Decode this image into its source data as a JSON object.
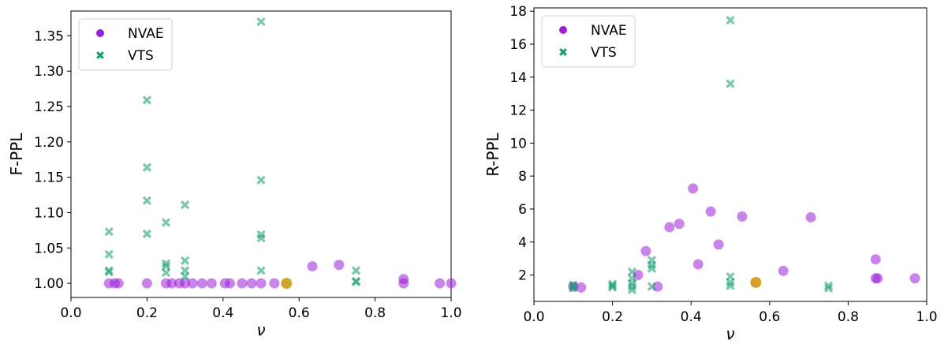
{
  "chart_data": [
    {
      "type": "scatter",
      "xlabel": "ν",
      "ylabel": "F-PPL",
      "xlim": [
        0.0,
        1.0
      ],
      "ylim": [
        0.98,
        1.385
      ],
      "xticks": [
        "0.0",
        "0.2",
        "0.4",
        "0.6",
        "0.8",
        "1.0"
      ],
      "yticks": [
        "1.00",
        "1.05",
        "1.10",
        "1.15",
        "1.20",
        "1.25",
        "1.30",
        "1.35"
      ],
      "legend": {
        "position": "top-left"
      },
      "highlight": {
        "color": "#d4a32a",
        "x": 0.567,
        "y": 1.0
      },
      "series": [
        {
          "name": "NVAE",
          "marker": "circle",
          "color": "#9b1fd6",
          "points": [
            [
              0.1,
              1.0
            ],
            [
              0.115,
              1.0
            ],
            [
              0.125,
              1.0
            ],
            [
              0.2,
              1.0
            ],
            [
              0.25,
              1.0
            ],
            [
              0.265,
              1.0
            ],
            [
              0.285,
              1.0
            ],
            [
              0.3,
              1.0
            ],
            [
              0.32,
              1.0
            ],
            [
              0.345,
              1.0
            ],
            [
              0.37,
              1.0
            ],
            [
              0.405,
              1.0
            ],
            [
              0.418,
              1.0
            ],
            [
              0.45,
              1.0
            ],
            [
              0.475,
              1.0
            ],
            [
              0.5,
              1.0
            ],
            [
              0.535,
              1.0
            ],
            [
              0.635,
              1.024
            ],
            [
              0.705,
              1.026
            ],
            [
              0.875,
              1.0
            ],
            [
              0.875,
              1.006
            ],
            [
              0.97,
              1.0
            ],
            [
              1.0,
              1.0
            ]
          ]
        },
        {
          "name": "VTS",
          "marker": "x",
          "color": "#0f9a6e",
          "points": [
            [
              0.1,
              1.073
            ],
            [
              0.1,
              1.041
            ],
            [
              0.1,
              1.018
            ],
            [
              0.1,
              1.016
            ],
            [
              0.2,
              1.259
            ],
            [
              0.2,
              1.164
            ],
            [
              0.2,
              1.117
            ],
            [
              0.2,
              1.07
            ],
            [
              0.25,
              1.086
            ],
            [
              0.25,
              1.028
            ],
            [
              0.25,
              1.024
            ],
            [
              0.25,
              1.015
            ],
            [
              0.3,
              1.111
            ],
            [
              0.3,
              1.032
            ],
            [
              0.3,
              1.018
            ],
            [
              0.3,
              1.01
            ],
            [
              0.5,
              1.37
            ],
            [
              0.5,
              1.146
            ],
            [
              0.5,
              1.069
            ],
            [
              0.5,
              1.064
            ],
            [
              0.5,
              1.018
            ],
            [
              0.75,
              1.018
            ],
            [
              0.75,
              1.003
            ],
            [
              0.75,
              1.002
            ]
          ]
        }
      ]
    },
    {
      "type": "scatter",
      "xlabel": "ν",
      "ylabel": "R-PPL",
      "xlim": [
        0.0,
        1.0
      ],
      "ylim": [
        0.4,
        18.2
      ],
      "xticks": [
        "0.0",
        "0.2",
        "0.4",
        "0.6",
        "0.8",
        "1.0"
      ],
      "yticks": [
        "2",
        "4",
        "6",
        "8",
        "10",
        "12",
        "14",
        "16",
        "18"
      ],
      "legend": {
        "position": "top-left"
      },
      "highlight": {
        "color": "#d4a32a",
        "x": 0.565,
        "y": 1.55
      },
      "series": [
        {
          "name": "NVAE",
          "marker": "circle",
          "color": "#9b1fd6",
          "points": [
            [
              0.1,
              1.3
            ],
            [
              0.12,
              1.25
            ],
            [
              0.265,
              2.0
            ],
            [
              0.285,
              3.45
            ],
            [
              0.315,
              1.3
            ],
            [
              0.345,
              4.9
            ],
            [
              0.37,
              5.1
            ],
            [
              0.405,
              7.25
            ],
            [
              0.418,
              2.65
            ],
            [
              0.45,
              5.85
            ],
            [
              0.47,
              3.85
            ],
            [
              0.53,
              5.55
            ],
            [
              0.635,
              2.25
            ],
            [
              0.705,
              5.5
            ],
            [
              0.87,
              2.95
            ],
            [
              0.87,
              1.8
            ],
            [
              0.875,
              1.8
            ],
            [
              0.97,
              1.8
            ]
          ]
        },
        {
          "name": "VTS",
          "marker": "x",
          "color": "#0f9a6e",
          "points": [
            [
              0.1,
              1.4
            ],
            [
              0.1,
              1.3
            ],
            [
              0.1,
              1.2
            ],
            [
              0.2,
              1.45
            ],
            [
              0.2,
              1.35
            ],
            [
              0.2,
              1.25
            ],
            [
              0.25,
              2.2
            ],
            [
              0.25,
              1.8
            ],
            [
              0.25,
              1.5
            ],
            [
              0.25,
              1.3
            ],
            [
              0.25,
              1.1
            ],
            [
              0.3,
              2.9
            ],
            [
              0.3,
              2.6
            ],
            [
              0.3,
              2.4
            ],
            [
              0.3,
              1.3
            ],
            [
              0.5,
              17.45
            ],
            [
              0.5,
              13.6
            ],
            [
              0.5,
              1.9
            ],
            [
              0.5,
              1.55
            ],
            [
              0.5,
              1.35
            ],
            [
              0.75,
              1.35
            ],
            [
              0.75,
              1.2
            ]
          ]
        }
      ]
    }
  ]
}
